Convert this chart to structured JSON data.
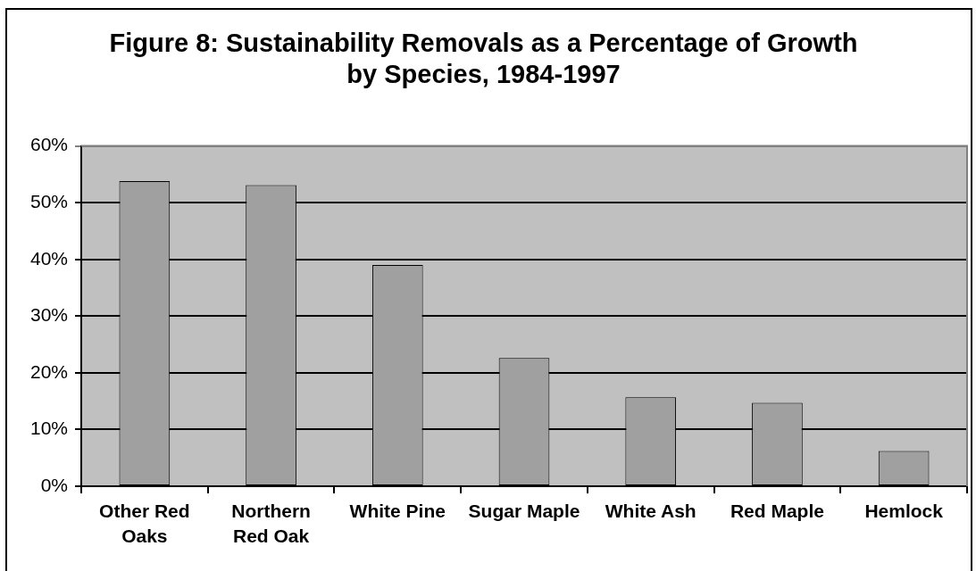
{
  "chart_data": {
    "type": "bar",
    "title": "Figure 8: Sustainability Removals as a Percentage of Growth by Species, 1984-1997",
    "categories": [
      "Other Red Oaks",
      "Northern Red Oak",
      "White Pine",
      "Sugar Maple",
      "White Ash",
      "Red Maple",
      "Hemlock"
    ],
    "values": [
      53.8,
      53.1,
      39,
      22.6,
      15.7,
      14.7,
      6.2
    ],
    "color": "#a0a0a0",
    "ylim": [
      0,
      60
    ],
    "yticks": [
      {
        "value": 0,
        "label": "0%"
      },
      {
        "value": 10,
        "label": "10%"
      },
      {
        "value": 20,
        "label": "20%"
      },
      {
        "value": 30,
        "label": "30%"
      },
      {
        "value": 40,
        "label": "40%"
      },
      {
        "value": 50,
        "label": "50%"
      },
      {
        "value": 60,
        "label": "60%"
      }
    ],
    "grid": "y"
  }
}
